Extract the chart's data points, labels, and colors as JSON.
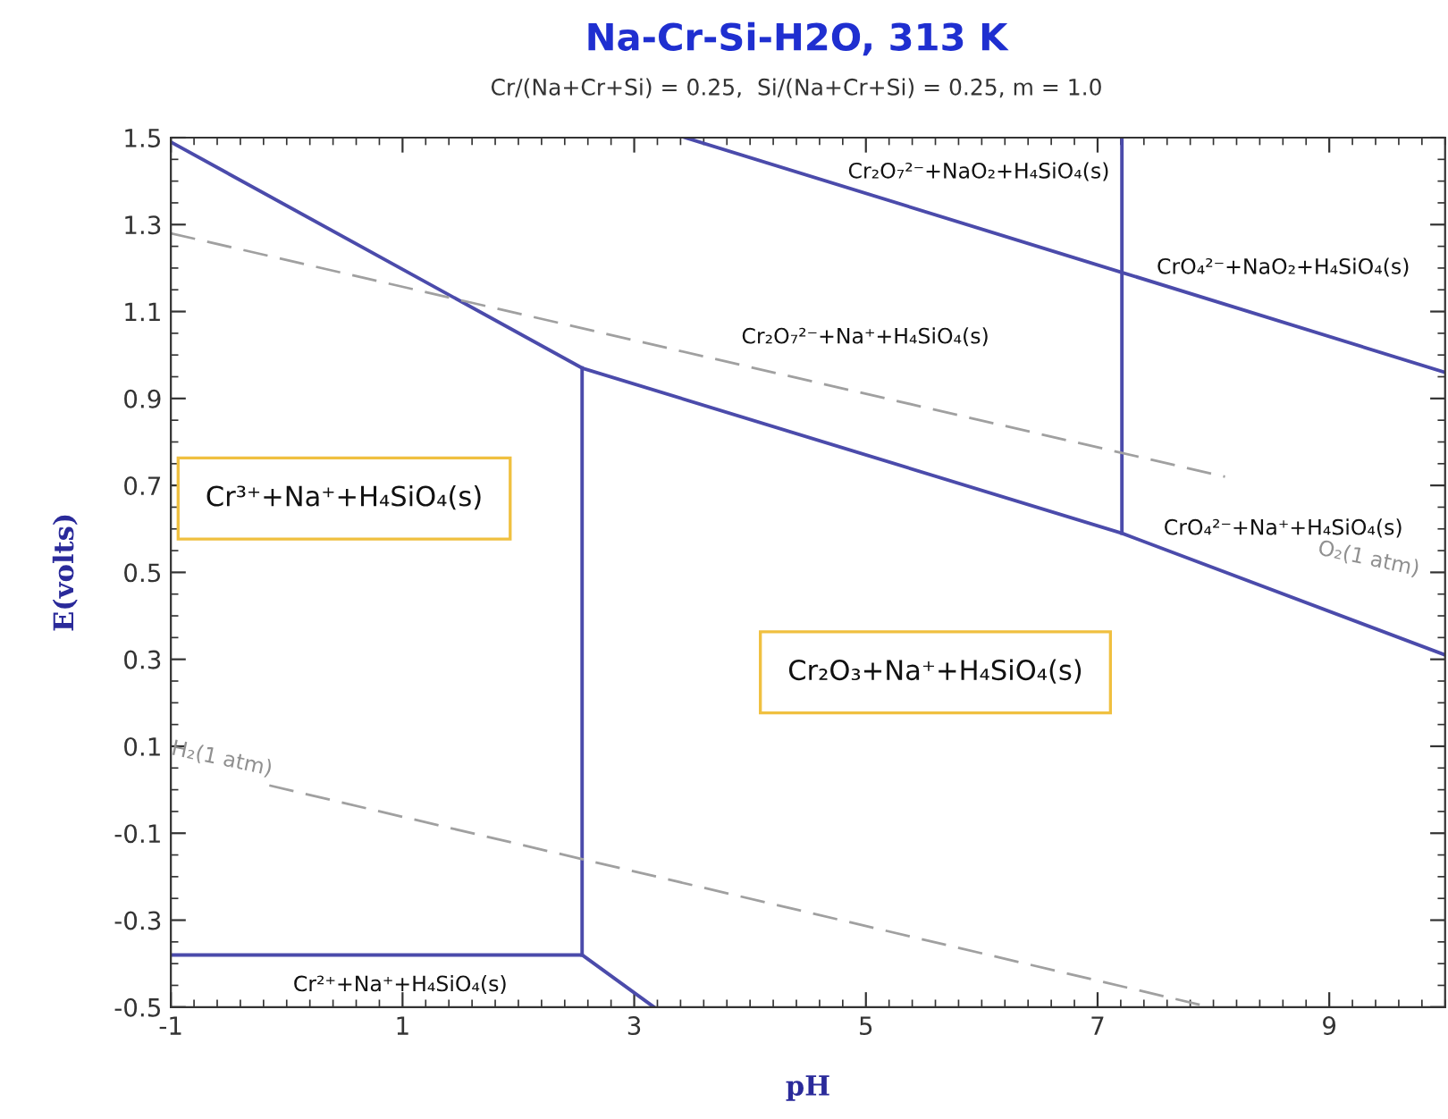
{
  "chart_data": {
    "type": "line",
    "title": "Na-Cr-Si-H2O, 313 K",
    "subtitle": "Cr/(Na+Cr+Si) = 0.25,  Si/(Na+Cr+Si) = 0.25, m = 1.0",
    "xlabel": "pH",
    "ylabel": "E(volts)",
    "xlim": [
      -1,
      10
    ],
    "ylim": [
      -0.5,
      1.5
    ],
    "xticks": [
      -1,
      1,
      3,
      5,
      7,
      9
    ],
    "yticks": [
      -0.5,
      -0.3,
      -0.1,
      0.1,
      0.3,
      0.5,
      0.7,
      0.9,
      1.1,
      1.3,
      1.5
    ],
    "grid": false,
    "marker": "none",
    "series": [
      {
        "color": "#4b4bab",
        "x": [
          -1,
          2.55,
          7.21,
          10
        ],
        "values": [
          1.49,
          0.97,
          0.59,
          0.31
        ]
      },
      {
        "color": "#4b4bab",
        "x": [
          2.55,
          2.55
        ],
        "values": [
          0.97,
          -0.38
        ]
      },
      {
        "color": "#4b4bab",
        "x": [
          7.21,
          7.21
        ],
        "values": [
          0.59,
          1.5
        ]
      },
      {
        "color": "#4b4bab",
        "x": [
          3.44,
          7.21,
          10
        ],
        "values": [
          1.5,
          1.19,
          0.96
        ]
      },
      {
        "color": "#4b4bab",
        "x": [
          -1,
          2.55,
          3.17
        ],
        "values": [
          -0.38,
          -0.38,
          -0.5
        ]
      },
      {
        "color": "#a0a0a0",
        "line_style": "dashed",
        "x": [
          -1,
          8.1
        ],
        "values": [
          1.28,
          0.72
        ]
      },
      {
        "color": "#a0a0a0",
        "line_style": "dashed",
        "x": [
          -0.15,
          7.97
        ],
        "values": [
          0.01,
          -0.5
        ]
      }
    ],
    "annotations": [
      "Cr₂O₇²⁻+NaO₂+H₄SiO₄(s)",
      "CrO₄²⁻+NaO₂+H₄SiO₄(s)",
      "Cr₂O₇²⁻+Na⁺+H₄SiO₄(s)",
      "CrO₄²⁻+Na⁺+H₄SiO₄(s)",
      "Cr³⁺+Na⁺+H₄SiO₄(s)",
      "Cr₂O₃+Na⁺+H₄SiO₄(s)",
      "Cr²⁺+Na⁺+H₄SiO₄(s)",
      "O₂(1 atm)",
      "H₂(1 atm)"
    ]
  }
}
